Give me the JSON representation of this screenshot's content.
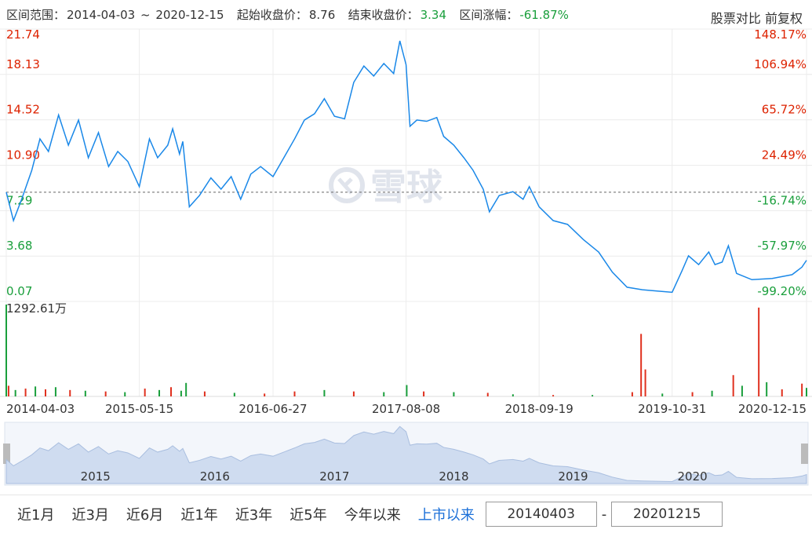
{
  "header": {
    "range_label": "区间范围：",
    "range_start": "2014-04-03",
    "range_sep": "~",
    "range_end": "2020-12-15",
    "start_label": "起始收盘价：",
    "end_label": "结束收盘价：",
    "end_price": "3.34",
    "change_label": "区间涨幅：",
    "change": "-61.87%",
    "compare": "股票对比",
    "adjust": "前复权"
  },
  "watermark": "雪球",
  "chart_data": [
    {
      "type": "line",
      "color": "#1a88e8",
      "baseline": 8.76,
      "up_color": "#dd2200",
      "down_color": "#1a9f3c",
      "xlim": [
        "2014-04-03",
        "2020-12-15"
      ],
      "xticks": [
        "2014-04-03",
        "2015-05-15",
        "2016-06-27",
        "2017-08-08",
        "2018-09-19",
        "2019-10-31",
        "2020-12-15"
      ],
      "ylim": [
        0.07,
        21.74
      ],
      "yticks": [
        0.07,
        3.68,
        7.29,
        {
          "value": 10.9,
          "label": "10.90"
        },
        14.52,
        18.13,
        21.74
      ],
      "y2lim": [
        -99.2,
        148.17
      ],
      "y2ticks": [
        {
          "value": -99.2,
          "label": "-99.20%"
        },
        {
          "value": -57.97,
          "label": "-57.97%"
        },
        {
          "value": -16.74,
          "label": "-16.74%"
        },
        {
          "value": 24.49,
          "label": "24.49%"
        },
        {
          "value": 65.72,
          "label": "65.72%"
        },
        {
          "value": 106.94,
          "label": "106.94%"
        },
        {
          "value": 148.17,
          "label": "148.17%"
        }
      ],
      "x": [
        "2014-04-03",
        "2014-04-25",
        "2014-05-20",
        "2014-06-20",
        "2014-07-15",
        "2014-08-10",
        "2014-09-10",
        "2014-10-10",
        "2014-11-10",
        "2014-12-10",
        "2015-01-10",
        "2015-02-10",
        "2015-03-10",
        "2015-04-10",
        "2015-05-15",
        "2015-06-15",
        "2015-07-10",
        "2015-08-10",
        "2015-08-25",
        "2015-09-15",
        "2015-09-25",
        "2015-10-15",
        "2015-11-15",
        "2015-12-20",
        "2016-01-20",
        "2016-02-20",
        "2016-03-20",
        "2016-04-20",
        "2016-05-20",
        "2016-06-27",
        "2016-07-30",
        "2016-09-01",
        "2016-10-01",
        "2016-11-01",
        "2016-12-01",
        "2017-01-01",
        "2017-02-01",
        "2017-03-01",
        "2017-04-01",
        "2017-05-01",
        "2017-06-01",
        "2017-07-01",
        "2017-07-20",
        "2017-08-08",
        "2017-08-20",
        "2017-09-10",
        "2017-10-10",
        "2017-11-10",
        "2017-12-01",
        "2018-01-01",
        "2018-02-01",
        "2018-03-01",
        "2018-04-01",
        "2018-04-20",
        "2018-05-20",
        "2018-07-01",
        "2018-08-01",
        "2018-08-20",
        "2018-09-19",
        "2018-11-01",
        "2018-12-15",
        "2019-02-01",
        "2019-03-20",
        "2019-05-01",
        "2019-06-15",
        "2019-08-01",
        "2019-09-15",
        "2019-10-31",
        "2019-11-30",
        "2019-12-20",
        "2020-01-20",
        "2020-02-20",
        "2020-03-10",
        "2020-04-01",
        "2020-04-20",
        "2020-05-15",
        "2020-07-01",
        "2020-09-01",
        "2020-11-01",
        "2020-12-01",
        "2020-12-15"
      ],
      "values": [
        8.76,
        6.5,
        8.2,
        10.5,
        13.0,
        12.0,
        14.9,
        12.5,
        14.5,
        11.5,
        13.5,
        10.8,
        12.0,
        11.2,
        9.2,
        13.0,
        11.5,
        12.5,
        13.8,
        11.8,
        12.8,
        7.6,
        8.5,
        9.9,
        9.0,
        10.0,
        8.2,
        10.2,
        10.8,
        10.0,
        11.5,
        13.0,
        14.5,
        15.0,
        16.2,
        14.8,
        14.6,
        17.5,
        18.8,
        18.0,
        19.0,
        18.2,
        20.8,
        18.9,
        14.0,
        14.5,
        14.4,
        14.7,
        13.2,
        12.5,
        11.5,
        10.5,
        9.0,
        7.2,
        8.5,
        8.8,
        8.2,
        9.2,
        7.6,
        6.5,
        6.2,
        5.0,
        4.0,
        2.4,
        1.2,
        1.0,
        0.9,
        0.8,
        2.5,
        3.7,
        3.0,
        4.0,
        3.0,
        3.2,
        4.5,
        2.3,
        1.8,
        1.9,
        2.2,
        2.8,
        3.34
      ]
    },
    {
      "type": "bar",
      "ylim": [
        0,
        1292.61
      ],
      "yticks": [
        {
          "value": 1292.61,
          "label": "1292.61万"
        }
      ],
      "x": [
        "2014-04-03",
        "2014-04-10",
        "2014-05-01",
        "2014-06-01",
        "2014-07-01",
        "2014-08-01",
        "2014-09-01",
        "2014-10-15",
        "2014-12-01",
        "2015-02-01",
        "2015-04-01",
        "2015-06-01",
        "2015-07-15",
        "2015-08-20",
        "2015-09-20",
        "2015-10-05",
        "2015-12-01",
        "2016-03-01",
        "2016-06-01",
        "2016-09-01",
        "2016-12-01",
        "2017-03-01",
        "2017-06-01",
        "2017-08-10",
        "2017-10-01",
        "2018-01-01",
        "2018-04-15",
        "2018-07-01",
        "2018-11-01",
        "2019-03-01",
        "2019-07-01",
        "2019-07-28",
        "2019-08-10",
        "2019-10-01",
        "2020-01-01",
        "2020-03-01",
        "2020-05-05",
        "2020-06-01",
        "2020-07-22",
        "2020-08-15",
        "2020-10-01",
        "2020-12-01",
        "2020-12-15"
      ],
      "values": [
        1292.61,
        150,
        90,
        110,
        140,
        100,
        130,
        90,
        80,
        70,
        60,
        110,
        90,
        130,
        80,
        190,
        70,
        50,
        40,
        70,
        90,
        70,
        60,
        160,
        70,
        60,
        50,
        30,
        20,
        20,
        60,
        880,
        380,
        40,
        60,
        80,
        300,
        150,
        1250,
        200,
        100,
        180,
        120
      ],
      "colors": [
        "#1a9f3c",
        "#e0301e",
        "#1a9f3c",
        "#e0301e",
        "#1a9f3c",
        "#e0301e",
        "#1a9f3c",
        "#e0301e",
        "#1a9f3c",
        "#e0301e",
        "#1a9f3c",
        "#e0301e",
        "#1a9f3c",
        "#e0301e",
        "#1a9f3c",
        "#1a9f3c",
        "#e0301e",
        "#1a9f3c",
        "#e0301e",
        "#e0301e",
        "#1a9f3c",
        "#e0301e",
        "#1a9f3c",
        "#1a9f3c",
        "#e0301e",
        "#1a9f3c",
        "#e0301e",
        "#1a9f3c",
        "#e0301e",
        "#1a9f3c",
        "#e0301e",
        "#e0301e",
        "#e0301e",
        "#1a9f3c",
        "#e0301e",
        "#1a9f3c",
        "#e0301e",
        "#1a9f3c",
        "#e0301e",
        "#1a9f3c",
        "#e0301e",
        "#e0301e",
        "#1a9f3c"
      ]
    }
  ],
  "navigator": {
    "xticks": [
      {
        "value": "2015-01-01",
        "label": "2015"
      },
      {
        "value": "2016-01-01",
        "label": "2016"
      },
      {
        "value": "2017-01-01",
        "label": "2017"
      },
      {
        "value": "2018-01-01",
        "label": "2018"
      },
      {
        "value": "2019-01-01",
        "label": "2019"
      },
      {
        "value": "2020-01-01",
        "label": "2020"
      }
    ]
  },
  "range_buttons": [
    "近1月",
    "近3月",
    "近6月",
    "近1年",
    "近3年",
    "近5年",
    "今年以来",
    "上市以来"
  ],
  "active_index": 7,
  "start_input": "20140403",
  "input_sep": "-",
  "end_input": "20201215"
}
